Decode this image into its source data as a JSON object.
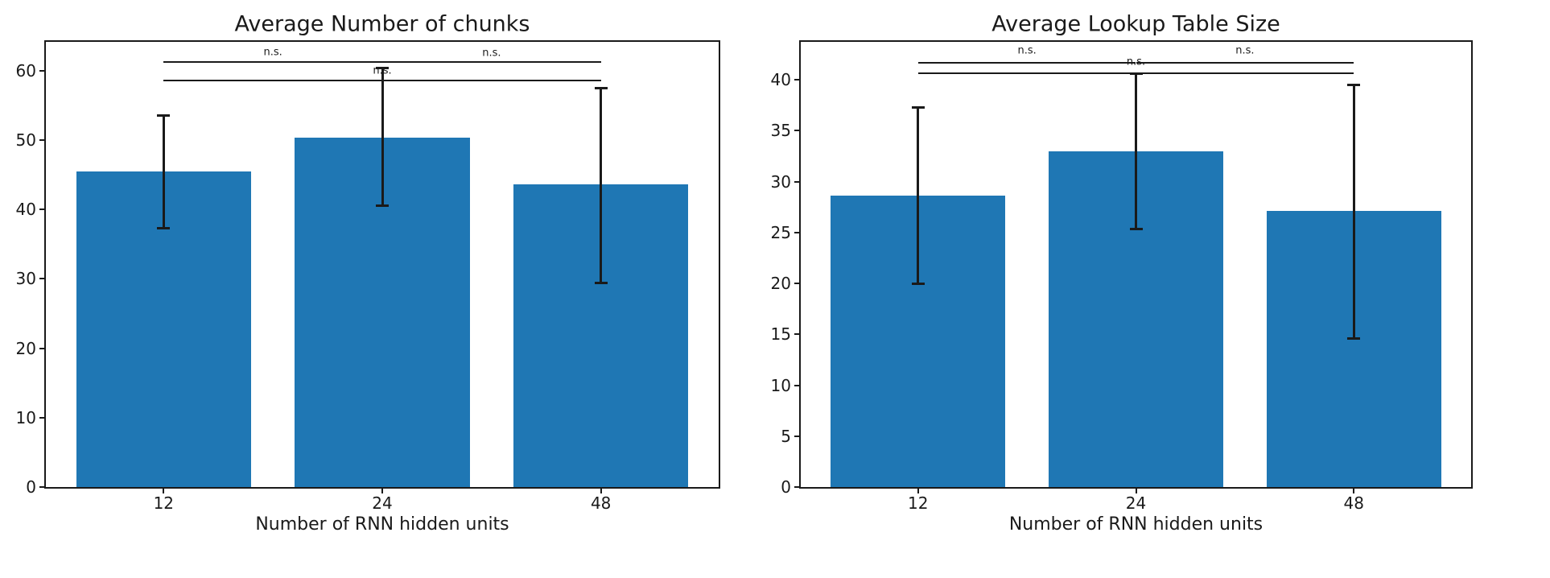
{
  "figure": {
    "background": "#ffffff",
    "bar_color": "#1f77b4",
    "line_color": "#1a1a1a",
    "text_color": "#1a1a1a"
  },
  "chart_data": [
    {
      "type": "bar",
      "title": "Average Number of chunks",
      "xlabel": "Number of RNN hidden units",
      "ylabel": "",
      "categories": [
        "12",
        "24",
        "48"
      ],
      "values": [
        45.5,
        50.4,
        43.6
      ],
      "error_low": [
        37.3,
        40.5,
        29.4
      ],
      "error_high": [
        53.6,
        60.4,
        57.5
      ],
      "yticks": [
        0,
        10,
        20,
        30,
        40,
        50,
        60
      ],
      "ylim": [
        0,
        64.17
      ],
      "grid": "off",
      "legend": "none",
      "significance": [
        {
          "groups": [
            "12",
            "24"
          ],
          "label": "n.s.",
          "line_y": 61.3,
          "label_y": 62.7
        },
        {
          "groups": [
            "24",
            "48"
          ],
          "label": "n.s.",
          "line_y": 61.3,
          "label_y": 62.5
        },
        {
          "groups": [
            "12",
            "48"
          ],
          "label": "n.s.",
          "line_y": 58.6,
          "label_y": 60.0
        }
      ]
    },
    {
      "type": "bar",
      "title": "Average Lookup Table Size",
      "xlabel": "Number of RNN hidden units",
      "ylabel": "",
      "categories": [
        "12",
        "24",
        "48"
      ],
      "values": [
        28.6,
        33.0,
        27.1
      ],
      "error_low": [
        20.0,
        25.3,
        14.6
      ],
      "error_high": [
        37.3,
        40.6,
        39.5
      ],
      "yticks": [
        0,
        5,
        10,
        15,
        20,
        25,
        30,
        35,
        40
      ],
      "ylim": [
        0,
        43.72
      ],
      "grid": "off",
      "legend": "none",
      "significance": [
        {
          "groups": [
            "12",
            "24"
          ],
          "label": "n.s.",
          "line_y": 41.66,
          "label_y": 42.85
        },
        {
          "groups": [
            "24",
            "48"
          ],
          "label": "n.s.",
          "line_y": 41.66,
          "label_y": 42.85
        },
        {
          "groups": [
            "12",
            "48"
          ],
          "label": "n.s.",
          "line_y": 40.63,
          "label_y": 41.72
        }
      ]
    }
  ]
}
